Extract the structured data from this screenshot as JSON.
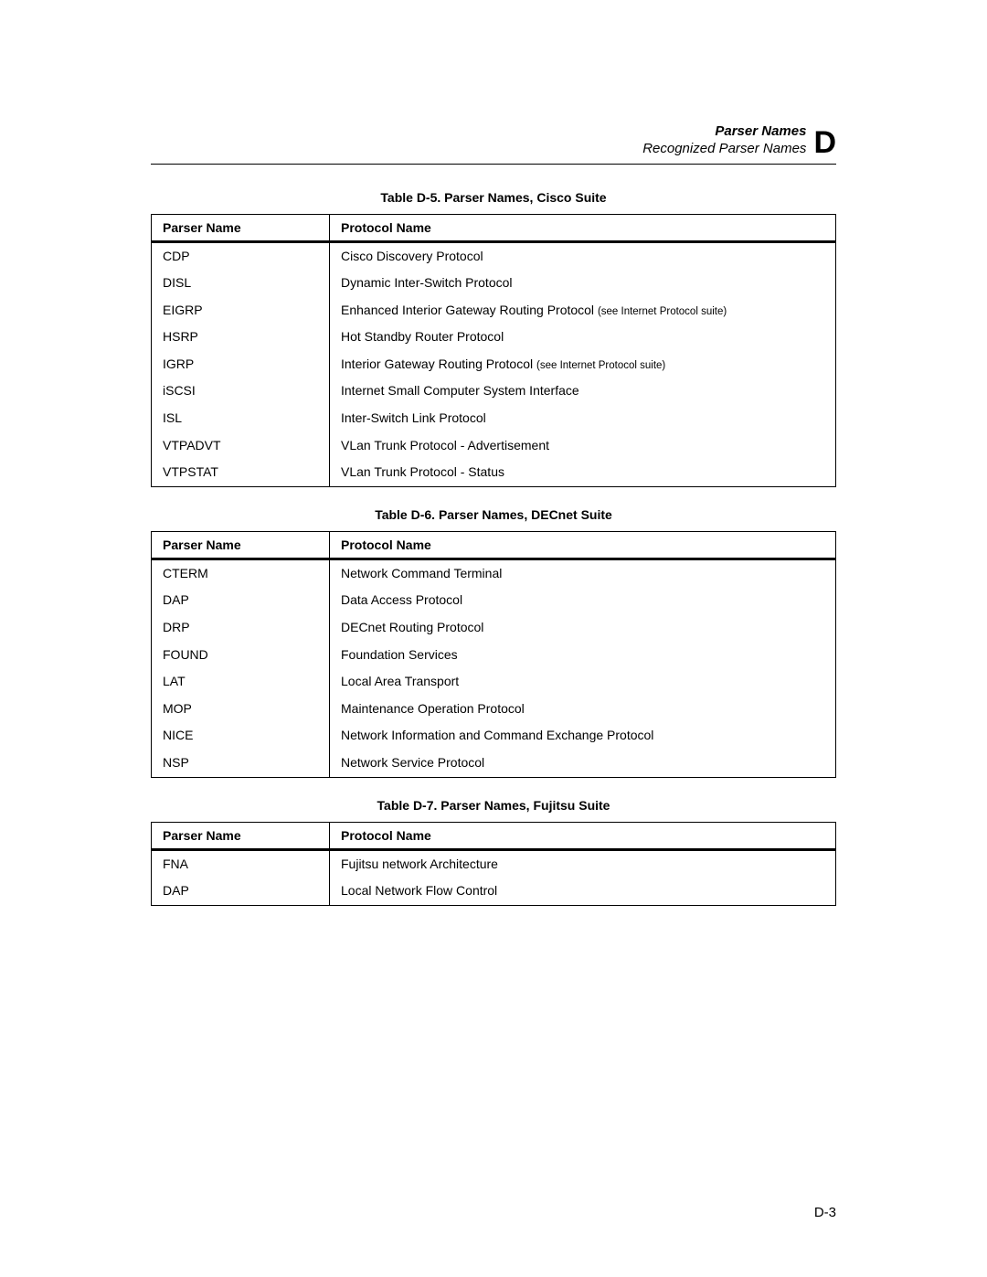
{
  "header": {
    "title": "Parser Names",
    "subtitle": "Recognized Parser Names",
    "appendix_letter": "D"
  },
  "column_headers": {
    "parser_name": "Parser Name",
    "protocol_name": "Protocol Name"
  },
  "tables": [
    {
      "caption": "Table D-5. Parser Names, Cisco Suite",
      "rows": [
        {
          "parser": "CDP",
          "protocol": "Cisco Discovery Protocol",
          "suffix": ""
        },
        {
          "parser": "DISL",
          "protocol": "Dynamic Inter-Switch Protocol",
          "suffix": ""
        },
        {
          "parser": "EIGRP",
          "protocol": "Enhanced Interior Gateway Routing Protocol ",
          "suffix": "(see Internet Protocol suite)"
        },
        {
          "parser": "HSRP",
          "protocol": "Hot Standby Router Protocol",
          "suffix": ""
        },
        {
          "parser": "IGRP",
          "protocol": "Interior Gateway Routing Protocol ",
          "suffix": "(see Internet Protocol suite)"
        },
        {
          "parser": "iSCSI",
          "protocol": "Internet Small Computer System Interface",
          "suffix": ""
        },
        {
          "parser": "ISL",
          "protocol": "Inter-Switch Link Protocol",
          "suffix": ""
        },
        {
          "parser": "VTPADVT",
          "protocol": "VLan Trunk Protocol - Advertisement",
          "suffix": ""
        },
        {
          "parser": "VTPSTAT",
          "protocol": "VLan Trunk Protocol - Status",
          "suffix": ""
        }
      ]
    },
    {
      "caption": "Table D-6. Parser Names, DECnet Suite",
      "rows": [
        {
          "parser": "CTERM",
          "protocol": "Network Command Terminal",
          "suffix": ""
        },
        {
          "parser": "DAP",
          "protocol": "Data Access Protocol",
          "suffix": ""
        },
        {
          "parser": "DRP",
          "protocol": "DECnet Routing Protocol",
          "suffix": ""
        },
        {
          "parser": "FOUND",
          "protocol": "Foundation Services",
          "suffix": ""
        },
        {
          "parser": "LAT",
          "protocol": "Local Area Transport",
          "suffix": ""
        },
        {
          "parser": "MOP",
          "protocol": "Maintenance Operation Protocol",
          "suffix": ""
        },
        {
          "parser": "NICE",
          "protocol": "Network Information and Command Exchange Protocol",
          "suffix": ""
        },
        {
          "parser": "NSP",
          "protocol": "Network Service Protocol",
          "suffix": ""
        }
      ]
    },
    {
      "caption": "Table D-7. Parser Names, Fujitsu Suite",
      "rows": [
        {
          "parser": "FNA",
          "protocol": "Fujitsu network Architecture",
          "suffix": ""
        },
        {
          "parser": "DAP",
          "protocol": "Local Network Flow Control",
          "suffix": ""
        }
      ]
    }
  ],
  "page_number": "D-3"
}
